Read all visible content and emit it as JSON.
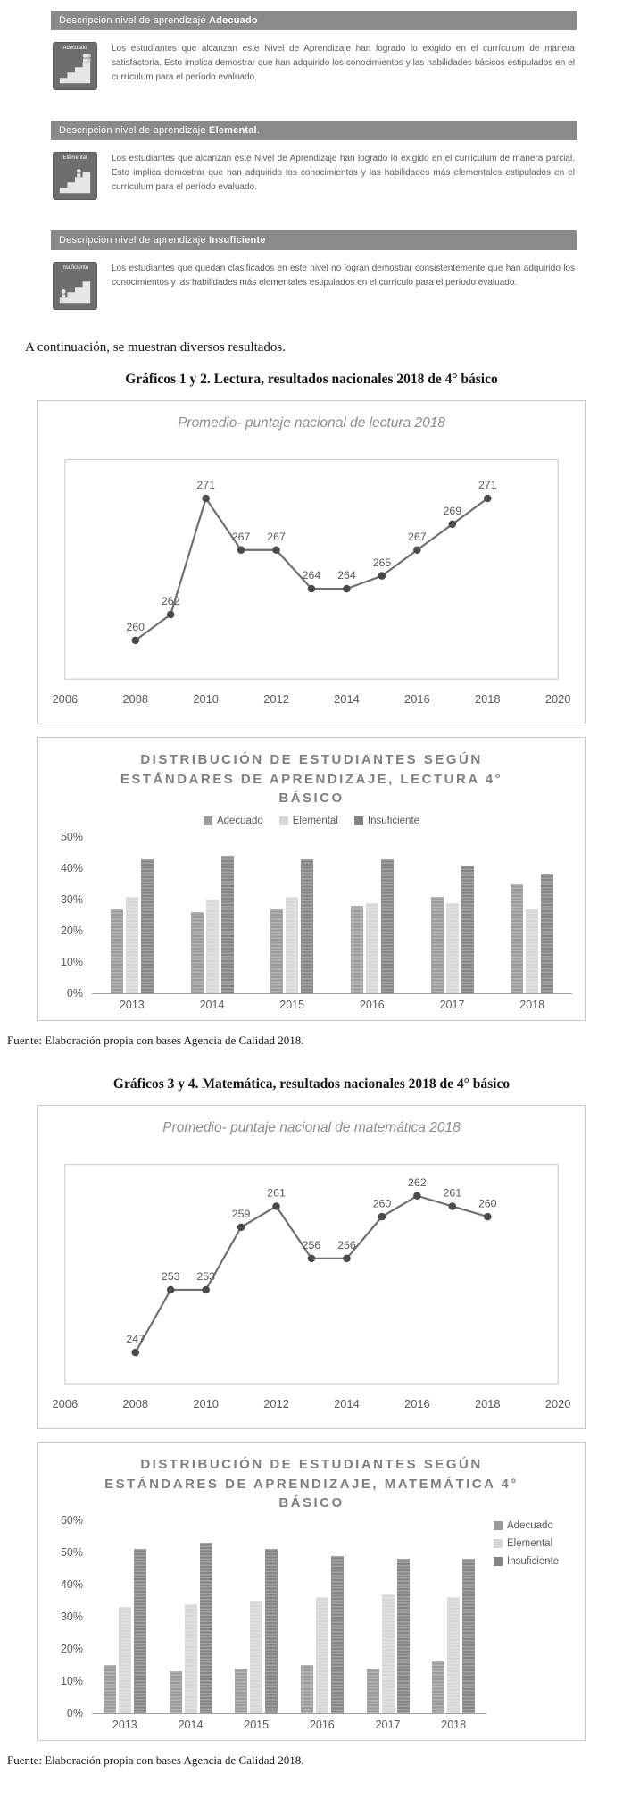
{
  "page": {
    "intro_text": "A continuación, se muestran diversos resultados.",
    "heading_lectura": "Gráficos 1 y 2. Lectura, resultados nacionales 2018 de 4° básico",
    "heading_matematica": "Gráficos 3 y 4. Matemática, resultados nacionales 2018 de 4° básico",
    "source_note": "Fuente: Elaboración propia con bases Agencia de Calidad 2018."
  },
  "level_boxes": [
    {
      "header_prefix": "Descripción nivel de aprendizaje ",
      "level": "Adecuado",
      "header_suffix": "",
      "icon_label": "Adecuado",
      "body": "Los estudiantes que alcanzan este Nivel de Aprendizaje han logrado lo exigido en el currículum de manera satisfactoria. Esto implica demostrar que han adquirido los conocimientos y las habilidades básicos estipulados en el currículum para el período evaluado."
    },
    {
      "header_prefix": "Descripción nivel de aprendizaje ",
      "level": "Elemental",
      "header_suffix": ".",
      "icon_label": "Elemental",
      "body": "Los estudiantes que alcanzan este Nivel de Aprendizaje han logrado lo exigido en el currículum de manera parcial. Esto implica demostrar que han adquirido los conocimientos y las habilidades más elementales estipulados en el currículum para el período evaluado."
    },
    {
      "header_prefix": "Descripción nivel de aprendizaje ",
      "level": "Insuficiente",
      "header_suffix": "",
      "icon_label": "Insuficiente",
      "body": "Los estudiantes que quedan clasificados en este nivel no logran demostrar consistentemente que han adquirido los conocimientos y las habilidades más elementales estipulados en el currículo para el período evaluado."
    }
  ],
  "colors": {
    "header_bar": "#8a8a8a",
    "icon_badge": "#6e6e6e",
    "line": "#6f6f6f",
    "marker": "#4a4a4a",
    "axis_text": "#595959",
    "chart_title": "#7f7f7f",
    "plot_border": "#c6c6c6",
    "adecuado": "#9b9b9b",
    "elemental": "#d7d7d7",
    "insuficiente": "#858585"
  },
  "chart_data": [
    {
      "id": "lectura_line",
      "type": "line",
      "title": "Promedio- puntaje nacional de lectura 2018",
      "x": [
        2008,
        2009,
        2010,
        2011,
        2012,
        2013,
        2014,
        2015,
        2016,
        2017,
        2018
      ],
      "values": [
        260,
        262,
        271,
        267,
        267,
        264,
        264,
        265,
        267,
        269,
        271
      ],
      "x_ticks": [
        2006,
        2008,
        2010,
        2012,
        2014,
        2016,
        2018,
        2020
      ],
      "xlim": [
        2006,
        2020
      ],
      "ylim": [
        257,
        274
      ],
      "grid": false,
      "legend": false
    },
    {
      "id": "lectura_bars",
      "type": "bar",
      "title": "DISTRIBUCIÓN DE ESTUDIANTES SEGÚN ESTÁNDARES DE APRENDIZAJE, LECTURA 4° BÁSICO",
      "categories": [
        "2013",
        "2014",
        "2015",
        "2016",
        "2017",
        "2018"
      ],
      "series": [
        {
          "name": "Adecuado",
          "color": "#9b9b9b",
          "values": [
            27,
            26,
            27,
            28,
            31,
            35
          ]
        },
        {
          "name": "Elemental",
          "color": "#d7d7d7",
          "values": [
            31,
            30,
            31,
            29,
            29,
            27
          ]
        },
        {
          "name": "Insuficiente",
          "color": "#858585",
          "values": [
            43,
            44,
            43,
            43,
            41,
            38
          ]
        }
      ],
      "ylim": [
        0,
        50
      ],
      "y_ticks": [
        "0%",
        "10%",
        "20%",
        "30%",
        "40%",
        "50%"
      ],
      "legend_position": "top",
      "grid": false
    },
    {
      "id": "matematica_line",
      "type": "line",
      "title": "Promedio- puntaje nacional de matemática 2018",
      "x": [
        2008,
        2009,
        2010,
        2011,
        2012,
        2013,
        2014,
        2015,
        2016,
        2017,
        2018
      ],
      "values": [
        247,
        253,
        253,
        259,
        261,
        256,
        256,
        260,
        262,
        261,
        260
      ],
      "x_ticks": [
        2006,
        2008,
        2010,
        2012,
        2014,
        2016,
        2018,
        2020
      ],
      "xlim": [
        2006,
        2020
      ],
      "ylim": [
        244,
        265
      ],
      "grid": false,
      "legend": false
    },
    {
      "id": "matematica_bars",
      "type": "bar",
      "title": "DISTRIBUCIÓN DE ESTUDIANTES SEGÚN ESTÁNDARES DE APRENDIZAJE, MATEMÁTICA 4° BÁSICO",
      "categories": [
        "2013",
        "2014",
        "2015",
        "2016",
        "2017",
        "2018"
      ],
      "series": [
        {
          "name": "Adecuado",
          "color": "#9b9b9b",
          "values": [
            15,
            13,
            14,
            15,
            14,
            16
          ]
        },
        {
          "name": "Elemental",
          "color": "#d7d7d7",
          "values": [
            33,
            34,
            35,
            36,
            37,
            36
          ]
        },
        {
          "name": "Insuficiente",
          "color": "#858585",
          "values": [
            51,
            53,
            51,
            49,
            48,
            48
          ]
        }
      ],
      "ylim": [
        0,
        60
      ],
      "y_ticks": [
        "0%",
        "10%",
        "20%",
        "30%",
        "40%",
        "50%",
        "60%"
      ],
      "legend_position": "right",
      "grid": false
    }
  ]
}
